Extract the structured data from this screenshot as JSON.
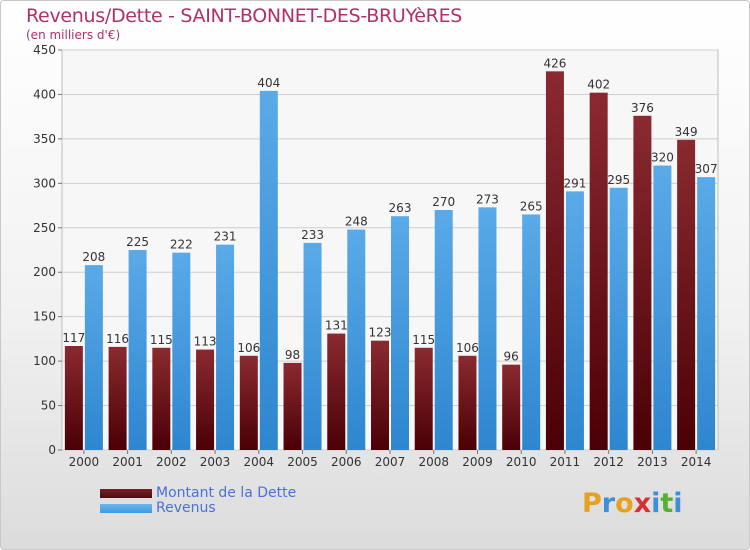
{
  "title": "Revenus/Dette - SAINT-BONNET-DES-BRUYèRES",
  "subtitle": "(en milliers d'€)",
  "colors": {
    "dette": "#7a1e24",
    "revenus": "#3d9ae0",
    "grid": "#cfcfcf",
    "axis_text": "#333333",
    "title": "#b0306a",
    "legend_text": "#4a6fe0"
  },
  "logo": {
    "letters": [
      "P",
      "r",
      "o",
      "x",
      "i",
      "t",
      "i"
    ],
    "colors": [
      "#e8a020",
      "#3e8fd8",
      "#e8a020",
      "#d83030",
      "#3e8fd8",
      "#58b030",
      "#3e8fd8"
    ]
  },
  "chart_data": {
    "type": "bar",
    "categories": [
      "2000",
      "2001",
      "2002",
      "2003",
      "2004",
      "2005",
      "2006",
      "2007",
      "2008",
      "2009",
      "2010",
      "2011",
      "2012",
      "2013",
      "2014"
    ],
    "series": [
      {
        "name": "Montant de la Dette",
        "values": [
          117,
          116,
          115,
          113,
          106,
          98,
          131,
          123,
          115,
          106,
          96,
          426,
          402,
          376,
          349
        ]
      },
      {
        "name": "Revenus",
        "values": [
          208,
          225,
          222,
          231,
          404,
          233,
          248,
          263,
          270,
          273,
          265,
          291,
          295,
          320,
          307
        ]
      }
    ],
    "ylim": [
      0,
      450
    ],
    "yticks": [
      "0",
      "50",
      "100",
      "150",
      "200",
      "250",
      "300",
      "350",
      "400",
      "450"
    ],
    "grid": true,
    "legend": "bottom-left"
  }
}
